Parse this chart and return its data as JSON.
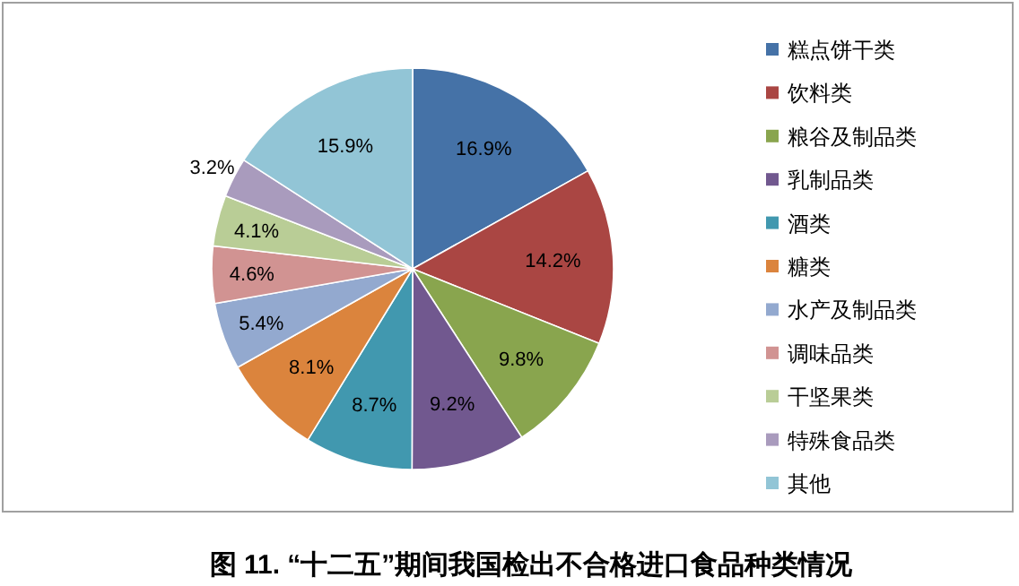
{
  "chart_data": {
    "type": "pie",
    "title": "图 11. “十二五”期间我国检出不合格进口食品种类情况",
    "categories": [
      "糕点饼干类",
      "饮料类",
      "粮谷及制品类",
      "乳制品类",
      "酒类",
      "糖类",
      "水产及制品类",
      "调味品类",
      "干坚果类",
      "特殊食品类",
      "其他"
    ],
    "values": [
      16.9,
      14.2,
      9.8,
      9.2,
      8.7,
      8.1,
      5.4,
      4.6,
      4.1,
      3.2,
      15.9
    ],
    "value_labels": [
      "16.9%",
      "14.2%",
      "9.8%",
      "9.2%",
      "8.7%",
      "8.1%",
      "5.4%",
      "4.6%",
      "4.1%",
      "3.2%",
      "15.9%"
    ],
    "colors": [
      "#4572a7",
      "#aa4643",
      "#89a54e",
      "#71588f",
      "#4198af",
      "#db843d",
      "#93a9cf",
      "#d19392",
      "#b9cd96",
      "#a99bbd",
      "#92c5d6"
    ],
    "legend": "right"
  }
}
